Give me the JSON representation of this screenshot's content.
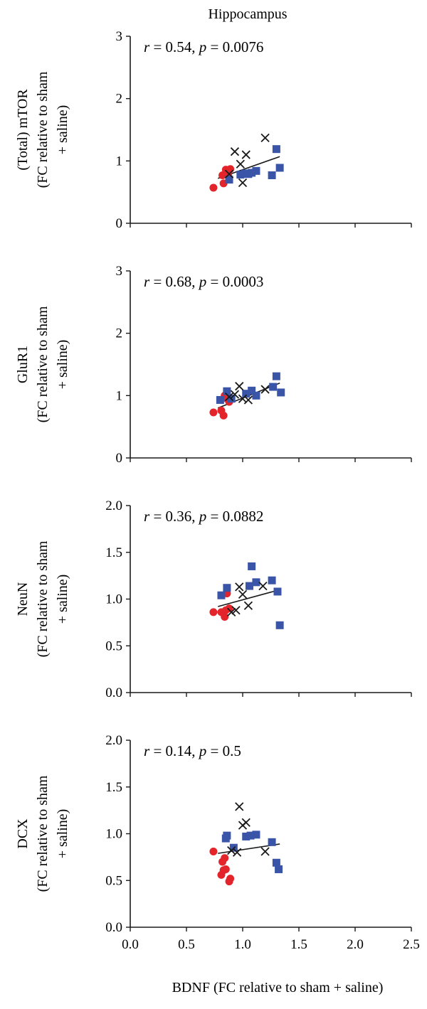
{
  "figure": {
    "title": "Hippocampus",
    "xlabel": "BDNF (FC relative to sham + saline)"
  },
  "colors": {
    "group1": "#e3242b",
    "group2": "#3a55a8",
    "group3": "#1a1a1a",
    "axis": "#1a1a1a"
  },
  "chart_data": [
    {
      "type": "scatter",
      "ylabel_line1": "(Total) mTOR",
      "ylabel_line2": "(FC relative to sham",
      "ylabel_line3": "+ saline)",
      "annotation": {
        "r_sym": "r",
        "r_text": " = 0.54, ",
        "p_sym": "p",
        "p_text": " = 0.0076"
      },
      "xlim": [
        0,
        2.5
      ],
      "ylim": [
        0,
        3
      ],
      "yticks": [
        "0",
        "1",
        "2",
        "3"
      ],
      "show_xticks": false,
      "fit": {
        "x": [
          0.78,
          1.33
        ],
        "y": [
          0.72,
          1.07
        ]
      },
      "series": [
        {
          "marker": "circle",
          "color": "#e3242b",
          "points": [
            [
              0.74,
              0.57
            ],
            [
              0.82,
              0.77
            ],
            [
              0.83,
              0.64
            ],
            [
              0.85,
              0.86
            ],
            [
              0.89,
              0.87
            ],
            [
              0.87,
              0.78
            ]
          ]
        },
        {
          "marker": "square",
          "color": "#3a55a8",
          "points": [
            [
              0.88,
              0.7
            ],
            [
              0.98,
              0.78
            ],
            [
              1.02,
              0.8
            ],
            [
              1.05,
              0.79
            ],
            [
              1.08,
              0.81
            ],
            [
              1.12,
              0.84
            ],
            [
              1.26,
              0.77
            ],
            [
              1.3,
              1.19
            ],
            [
              1.33,
              0.89
            ]
          ]
        },
        {
          "marker": "x",
          "color": "#1a1a1a",
          "points": [
            [
              0.88,
              0.79
            ],
            [
              0.93,
              1.15
            ],
            [
              0.98,
              0.95
            ],
            [
              1.0,
              0.65
            ],
            [
              1.03,
              1.1
            ],
            [
              1.2,
              1.37
            ]
          ]
        }
      ]
    },
    {
      "type": "scatter",
      "ylabel_line1": "GluR1",
      "ylabel_line2": "(FC relative to sham",
      "ylabel_line3": "+ saline)",
      "annotation": {
        "r_sym": "r",
        "r_text": " = 0.68, ",
        "p_sym": "p",
        "p_text": " = 0.0003"
      },
      "xlim": [
        0,
        2.5
      ],
      "ylim": [
        0,
        3
      ],
      "yticks": [
        "0",
        "1",
        "2",
        "3"
      ],
      "show_xticks": false,
      "fit": {
        "x": [
          0.78,
          1.33
        ],
        "y": [
          0.8,
          1.2
        ]
      },
      "series": [
        {
          "marker": "circle",
          "color": "#e3242b",
          "points": [
            [
              0.74,
              0.73
            ],
            [
              0.81,
              0.76
            ],
            [
              0.83,
              0.68
            ],
            [
              0.84,
              1.0
            ],
            [
              0.86,
              0.95
            ],
            [
              0.88,
              0.9
            ]
          ]
        },
        {
          "marker": "square",
          "color": "#3a55a8",
          "points": [
            [
              0.8,
              0.93
            ],
            [
              0.86,
              1.07
            ],
            [
              0.9,
              0.95
            ],
            [
              1.03,
              1.03
            ],
            [
              1.08,
              1.08
            ],
            [
              1.12,
              1.0
            ],
            [
              1.27,
              1.14
            ],
            [
              1.3,
              1.31
            ],
            [
              1.34,
              1.05
            ]
          ]
        },
        {
          "marker": "x",
          "color": "#1a1a1a",
          "points": [
            [
              0.88,
              0.98
            ],
            [
              0.93,
              1.02
            ],
            [
              0.97,
              1.15
            ],
            [
              1.0,
              0.95
            ],
            [
              1.05,
              0.93
            ],
            [
              1.2,
              1.1
            ]
          ]
        }
      ]
    },
    {
      "type": "scatter",
      "ylabel_line1": "NeuN",
      "ylabel_line2": "(FC relative to sham",
      "ylabel_line3": "+ saline)",
      "annotation": {
        "r_sym": "r",
        "r_text": " = 0.36, ",
        "p_sym": "p",
        "p_text": " = 0.0882"
      },
      "xlim": [
        0,
        2.5
      ],
      "ylim": [
        0,
        2
      ],
      "yticks": [
        "0.0",
        "0.5",
        "1.0",
        "1.5",
        "2.0"
      ],
      "show_xticks": false,
      "fit": {
        "x": [
          0.78,
          1.33
        ],
        "y": [
          0.92,
          1.1
        ]
      },
      "series": [
        {
          "marker": "circle",
          "color": "#e3242b",
          "points": [
            [
              0.74,
              0.86
            ],
            [
              0.81,
              0.86
            ],
            [
              0.84,
              0.81
            ],
            [
              0.85,
              0.88
            ],
            [
              0.86,
              1.06
            ],
            [
              0.88,
              0.9
            ]
          ]
        },
        {
          "marker": "square",
          "color": "#3a55a8",
          "points": [
            [
              0.81,
              1.04
            ],
            [
              0.86,
              1.12
            ],
            [
              1.06,
              1.14
            ],
            [
              1.08,
              1.35
            ],
            [
              1.12,
              1.18
            ],
            [
              1.26,
              1.2
            ],
            [
              1.31,
              1.08
            ],
            [
              1.33,
              0.72
            ]
          ]
        },
        {
          "marker": "x",
          "color": "#1a1a1a",
          "points": [
            [
              0.9,
              0.86
            ],
            [
              0.94,
              0.88
            ],
            [
              0.97,
              1.13
            ],
            [
              1.0,
              1.05
            ],
            [
              1.05,
              0.93
            ],
            [
              1.18,
              1.14
            ]
          ]
        }
      ]
    },
    {
      "type": "scatter",
      "ylabel_line1": "DCX",
      "ylabel_line2": "(FC relative to sham",
      "ylabel_line3": "+ saline)",
      "annotation": {
        "r_sym": "r",
        "r_text": " = 0.14, ",
        "p_sym": "p",
        "p_text": " = 0.5"
      },
      "xlim": [
        0,
        2.5
      ],
      "ylim": [
        0,
        2
      ],
      "yticks": [
        "0.0",
        "0.5",
        "1.0",
        "1.5",
        "2.0"
      ],
      "show_xticks": true,
      "xticks": [
        "0.0",
        "0.5",
        "1.0",
        "1.5",
        "2.0",
        "2.5"
      ],
      "fit": {
        "x": [
          0.78,
          1.33
        ],
        "y": [
          0.79,
          0.89
        ]
      },
      "series": [
        {
          "marker": "circle",
          "color": "#e3242b",
          "points": [
            [
              0.74,
              0.81
            ],
            [
              0.81,
              0.56
            ],
            [
              0.82,
              0.7
            ],
            [
              0.83,
              0.61
            ],
            [
              0.84,
              0.74
            ],
            [
              0.85,
              0.62
            ],
            [
              0.88,
              0.49
            ],
            [
              0.89,
              0.52
            ]
          ]
        },
        {
          "marker": "square",
          "color": "#3a55a8",
          "points": [
            [
              0.85,
              0.95
            ],
            [
              0.86,
              0.98
            ],
            [
              0.92,
              0.85
            ],
            [
              1.03,
              0.97
            ],
            [
              1.07,
              0.98
            ],
            [
              1.12,
              0.99
            ],
            [
              1.26,
              0.91
            ],
            [
              1.3,
              0.69
            ],
            [
              1.32,
              0.62
            ]
          ]
        },
        {
          "marker": "x",
          "color": "#1a1a1a",
          "points": [
            [
              0.9,
              0.82
            ],
            [
              0.95,
              0.8
            ],
            [
              0.97,
              1.29
            ],
            [
              1.0,
              1.09
            ],
            [
              1.03,
              1.12
            ],
            [
              1.2,
              0.81
            ]
          ]
        }
      ]
    }
  ]
}
